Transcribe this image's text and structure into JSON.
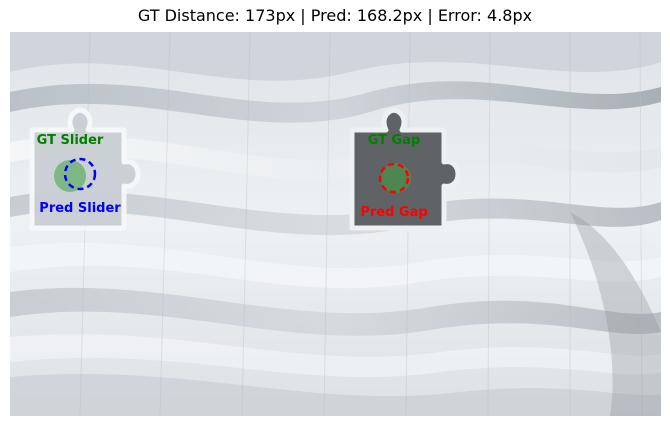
{
  "figure": {
    "title": "GT Distance: 173px | Pred: 168.2px | Error: 4.8px"
  },
  "annotations": {
    "gt_slider": {
      "label": "GT Slider",
      "color": "#008000"
    },
    "pred_slider": {
      "label": "Pred Slider",
      "color": "#0000ff"
    },
    "gt_gap": {
      "label": "GT Gap",
      "color": "#008000"
    },
    "pred_gap": {
      "label": "Pred Gap",
      "color": "#ff0000"
    }
  },
  "colors": {
    "background_light": "#e4e8ec",
    "background_dark": "#9aa2aa",
    "gap_fill": "#5f6366",
    "piece_outline": "#f4f6f8"
  },
  "icons": [
    "puzzle-piece-icon",
    "puzzle-gap-icon"
  ]
}
